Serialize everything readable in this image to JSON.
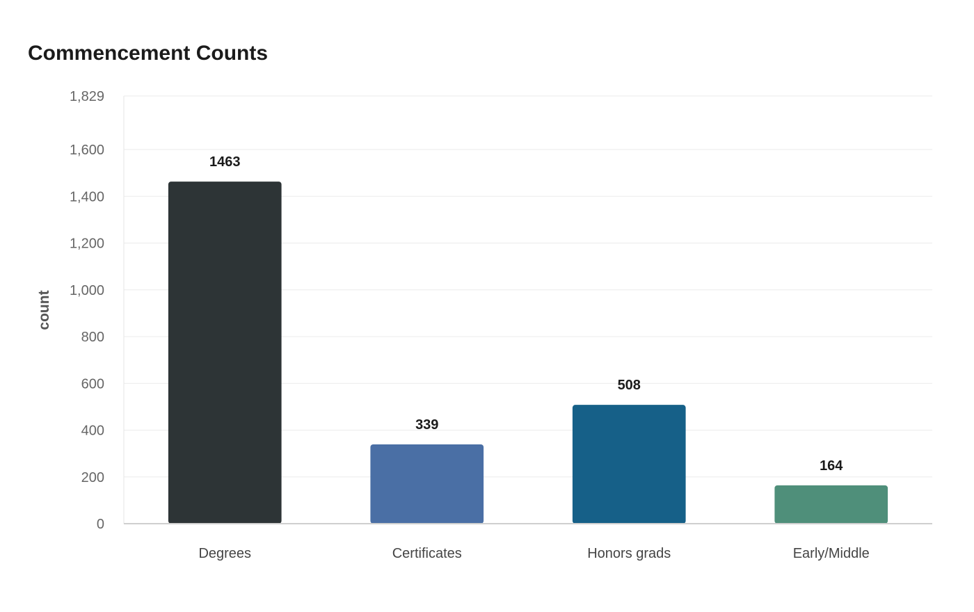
{
  "chart_data": {
    "type": "bar",
    "title": "Commencement Counts",
    "xlabel": "",
    "ylabel": "count",
    "categories": [
      "Degrees",
      "Certificates",
      "Honors grads",
      "Early/Middle"
    ],
    "values": [
      1463,
      339,
      508,
      164
    ],
    "colors": [
      "#2d3436",
      "#4a6fa5",
      "#166088",
      "#4f8f7a"
    ],
    "ylim": [
      0,
      1829
    ],
    "yticks": [
      0,
      200,
      400,
      600,
      800,
      1000,
      1200,
      1400,
      1600,
      1829
    ],
    "ytick_labels": [
      "0",
      "200",
      "400",
      "600",
      "800",
      "1,000",
      "1,200",
      "1,400",
      "1,600",
      "1,829"
    ],
    "grid": true,
    "legend": "none"
  }
}
